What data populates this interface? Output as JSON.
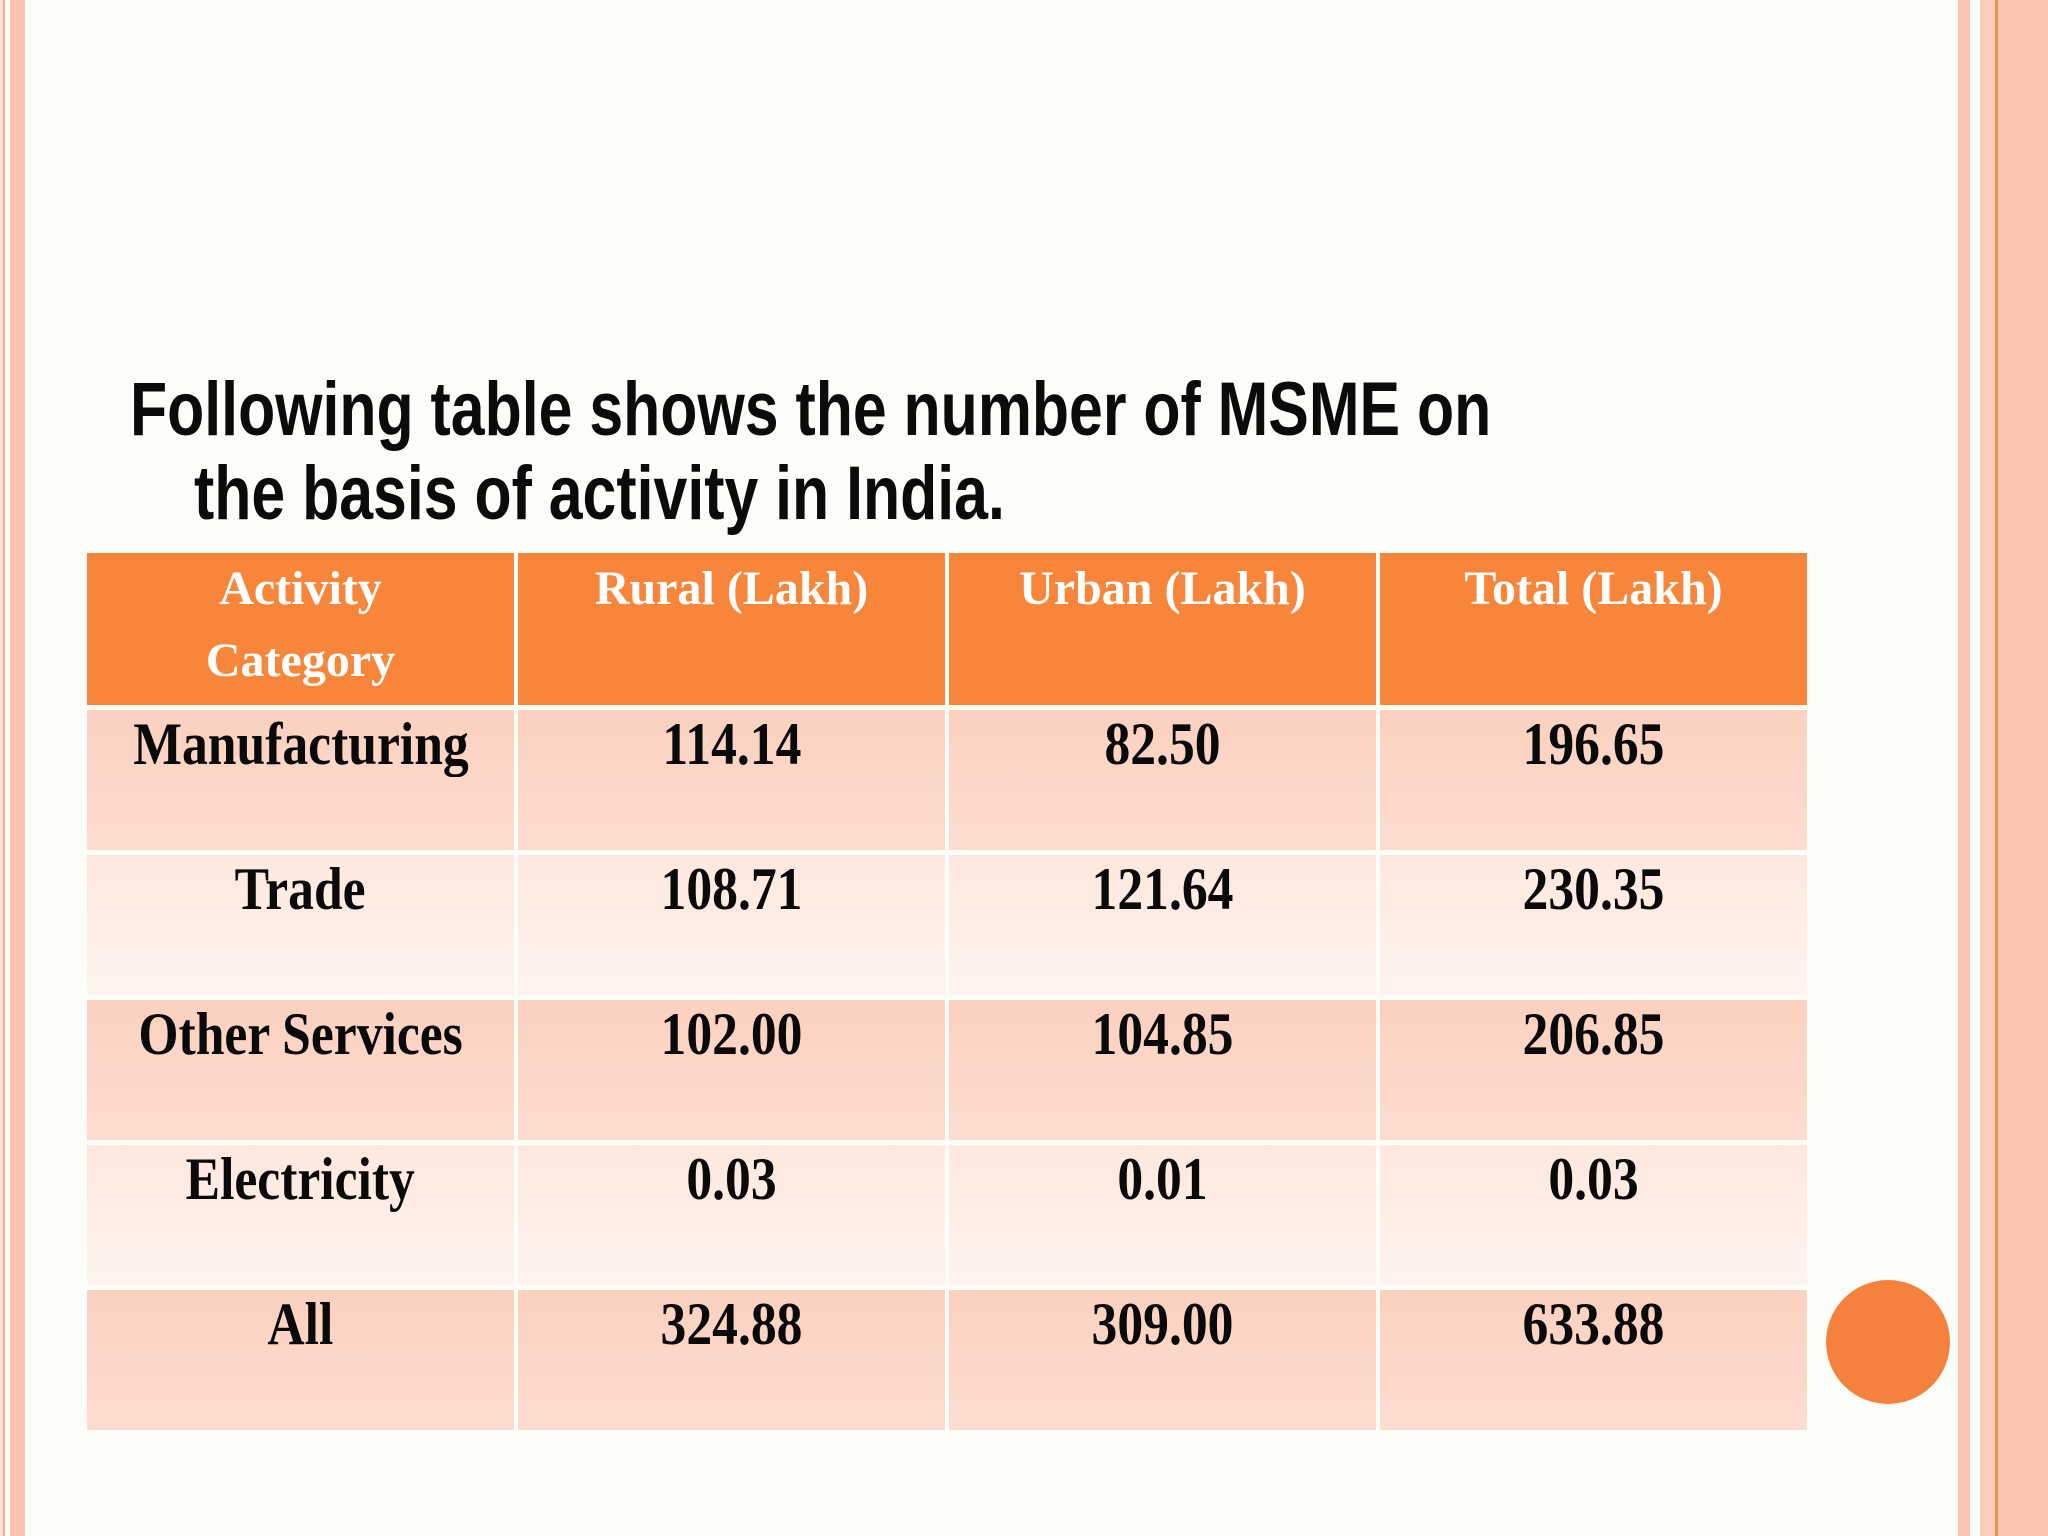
{
  "slide": {
    "title_line1": "Following table shows the number of MSME on",
    "title_line2": "the basis of activity in India."
  },
  "table": {
    "headers": {
      "activity_line1": "Activity",
      "activity_line2": "Category",
      "rural": "Rural (Lakh)",
      "urban": "Urban (Lakh)",
      "total": "Total (Lakh)"
    },
    "rows": [
      {
        "category": "Manufacturing",
        "rural": "114.14",
        "urban": "82.50",
        "total": "196.65"
      },
      {
        "category": "Trade",
        "rural": "108.71",
        "urban": "121.64",
        "total": "230.35"
      },
      {
        "category": "Other Services",
        "rural": "102.00",
        "urban": "104.85",
        "total": "206.85"
      },
      {
        "category": "Electricity",
        "rural": "0.03",
        "urban": "0.01",
        "total": "0.03"
      },
      {
        "category": "All",
        "rural": "324.88",
        "urban": "309.00",
        "total": "633.88"
      }
    ]
  },
  "colors": {
    "header_orange": "#F7853A",
    "row_dark": "#FCD5C6",
    "row_light": "#FEEAE1",
    "side_stripe": "#F9C3AE",
    "side_stripe_accent": "#ED9153",
    "circle_orange": "#F5823C",
    "title_text": "#0B0B0B",
    "header_text": "#FFFFFF",
    "slide_background": "#FBFDF8"
  }
}
